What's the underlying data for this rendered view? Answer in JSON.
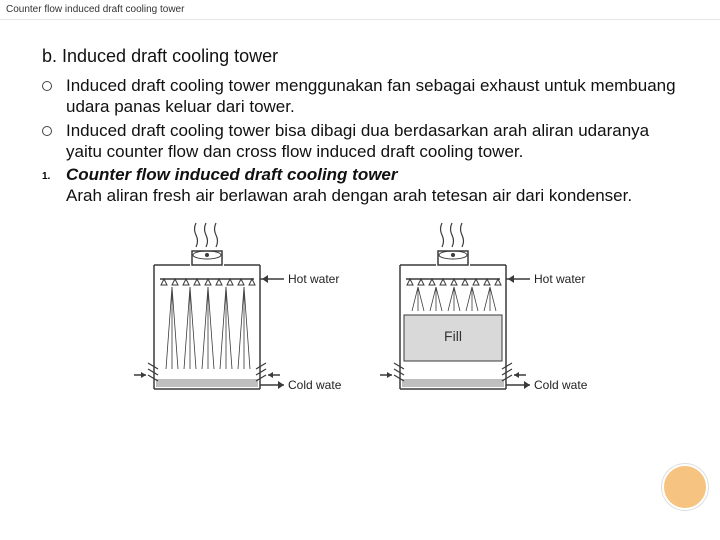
{
  "breadcrumb": "Counter flow induced draft cooling tower",
  "section_title": "b. Induced draft cooling tower",
  "bullets": [
    "Induced draft cooling tower menggunakan fan sebagai exhaust untuk membuang udara panas keluar dari tower.",
    "Induced draft cooling tower bisa dibagi dua berdasarkan arah aliran udaranya yaitu counter flow dan cross flow induced draft cooling tower."
  ],
  "numbered": {
    "marker": "1.",
    "heading": "Counter flow induced draft cooling tower",
    "text": "Arah aliran fresh air berlawan arah dengan arah tetesan air dari kondenser."
  },
  "diagram": {
    "labels": {
      "hot_water": "Hot water",
      "cold_water": "Cold water",
      "fill": "Fill"
    },
    "stroke": "#3a3a3a",
    "text_color": "#222222",
    "water_fill": "#bfbfbf",
    "fill_block": "#d9d9d9",
    "fill_text": "#333333",
    "line_width": 1.5,
    "label_fontsize": 12
  },
  "accent_color": "#f6c381"
}
